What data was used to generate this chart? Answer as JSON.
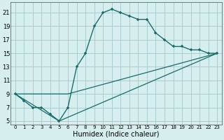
{
  "title": "",
  "xlabel": "Humidex (Indice chaleur)",
  "background_color": "#d6eeee",
  "grid_color": "#aacccc",
  "line_color": "#1a6b6b",
  "xlim": [
    -0.5,
    23.5
  ],
  "ylim": [
    4.5,
    22.5
  ],
  "yticks": [
    5,
    7,
    9,
    11,
    13,
    15,
    17,
    19,
    21
  ],
  "xticks": [
    0,
    1,
    2,
    3,
    4,
    5,
    6,
    7,
    8,
    9,
    10,
    11,
    12,
    13,
    14,
    15,
    16,
    17,
    18,
    19,
    20,
    21,
    22,
    23
  ],
  "main_x": [
    0,
    1,
    2,
    3,
    4,
    5,
    6,
    7,
    8,
    9,
    10,
    11,
    12,
    13,
    14,
    15,
    16,
    17,
    18,
    19,
    20,
    21,
    22,
    23
  ],
  "main_y": [
    9,
    8,
    7,
    7,
    6,
    5,
    7,
    13,
    15,
    19,
    21,
    21.5,
    21,
    20.5,
    20,
    20,
    18,
    17,
    16,
    16,
    15.5,
    15.5,
    15,
    15
  ],
  "line1_x": [
    0,
    6,
    23
  ],
  "line1_y": [
    9,
    9,
    15
  ],
  "line2_x": [
    0,
    5,
    23
  ],
  "line2_y": [
    9,
    5,
    15
  ]
}
